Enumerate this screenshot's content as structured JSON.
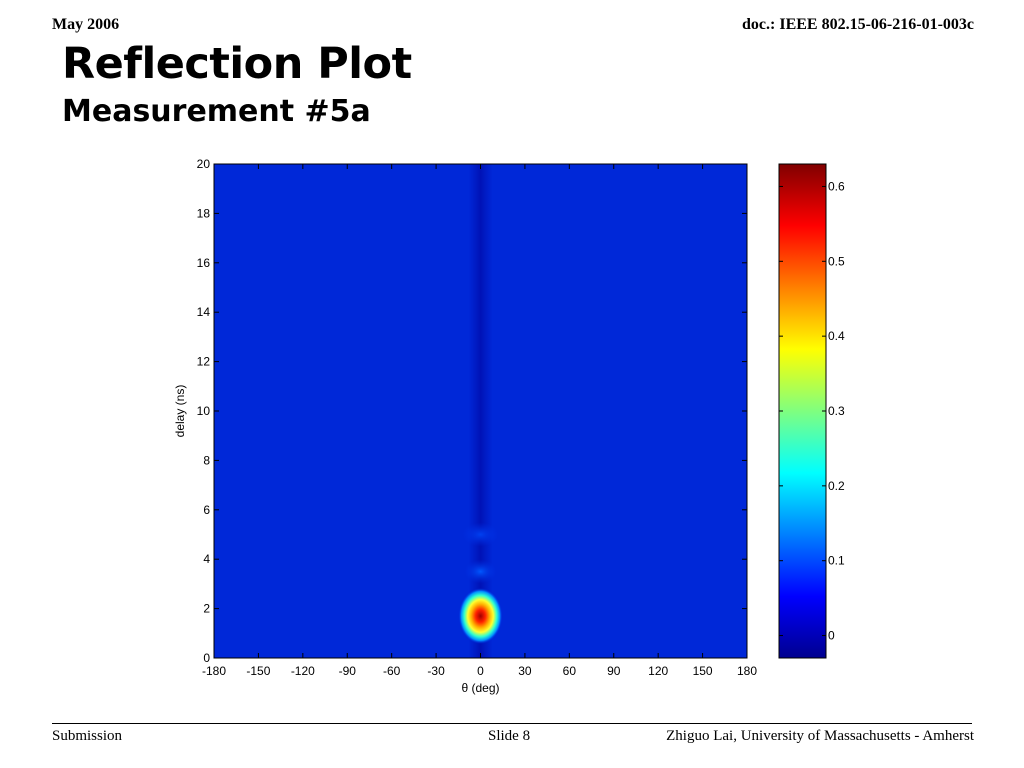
{
  "header": {
    "date": "May 2006",
    "doc_id": "doc.: IEEE 802.15-06-216-01-003c"
  },
  "slide": {
    "title": "Reflection Plot",
    "subtitle": "Measurement #5a"
  },
  "footer": {
    "left": "Submission",
    "center": "Slide 8",
    "right": "Zhiguo Lai, University of Massachusetts - Amherst"
  },
  "chart_data": {
    "type": "heatmap",
    "title": "",
    "xlabel": "θ (deg)",
    "ylabel": "delay (ns)",
    "xlim": [
      -180,
      180
    ],
    "ylim": [
      0,
      20
    ],
    "x_ticks": [
      -180,
      -150,
      -120,
      -90,
      -60,
      -30,
      0,
      30,
      60,
      90,
      120,
      150,
      180
    ],
    "y_ticks": [
      0,
      2,
      4,
      6,
      8,
      10,
      12,
      14,
      16,
      18,
      20
    ],
    "colormap": "jet",
    "colorbar": {
      "range": [
        -0.03,
        0.63
      ],
      "ticks": [
        0,
        0.1,
        0.2,
        0.3,
        0.4,
        0.5,
        0.6
      ],
      "tick_labels": [
        "0",
        "0.1",
        "0.2",
        "0.3",
        "0.4",
        "0.5",
        "0.6"
      ],
      "placement": "right"
    },
    "background_level": 0.0,
    "peaks": [
      {
        "theta_deg": 0,
        "delay_ns": 1.7,
        "value": 0.62
      },
      {
        "theta_deg": 0,
        "delay_ns": 3.5,
        "value": 0.06
      },
      {
        "theta_deg": 0,
        "delay_ns": 5.0,
        "value": 0.03
      }
    ]
  }
}
